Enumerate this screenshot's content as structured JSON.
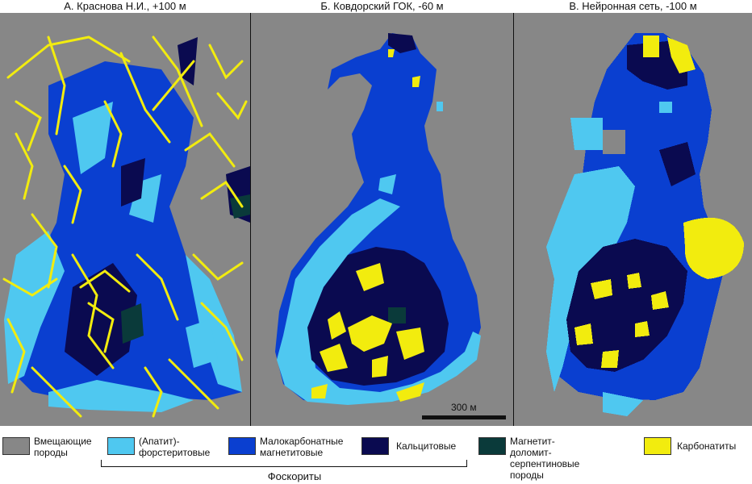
{
  "panels": [
    {
      "title": "А. Краснова Н.И., +100 м"
    },
    {
      "title": "Б. Ковдорский ГОК, -60 м"
    },
    {
      "title": "В. Нейронная сеть, -100 м"
    }
  ],
  "scalebar": {
    "label": "300 м"
  },
  "colors": {
    "host": "#878787",
    "apatite_forsterite": "#4FC8F0",
    "low_carbonate_magnetite": "#0A3FD0",
    "calcite": "#0A0A50",
    "magnetite_dolomite_serpentine": "#0A3A3A",
    "carbonatite": "#F2EC0E"
  },
  "legend": [
    {
      "key": "host",
      "label": "Вмещающие\nпороды",
      "color": "#878787"
    },
    {
      "key": "apatite_forsterite",
      "label": "(Апатит)-\nфорстеритовые",
      "color": "#4FC8F0"
    },
    {
      "key": "low_carbonate_magnetite",
      "label": "Малокарбонатные\nмагнетитовые",
      "color": "#0A3FD0"
    },
    {
      "key": "calcite",
      "label": "Кальцитовые",
      "color": "#0A0A50"
    },
    {
      "key": "magnetite_dolomite_serpentine",
      "label": "Магнетит-доломит-\nсерпентиновые породы",
      "color": "#0A3A3A"
    },
    {
      "key": "carbonatite",
      "label": "Карбонатиты",
      "color": "#F2EC0E"
    }
  ],
  "legend_group": {
    "label": "Фоскориты"
  }
}
